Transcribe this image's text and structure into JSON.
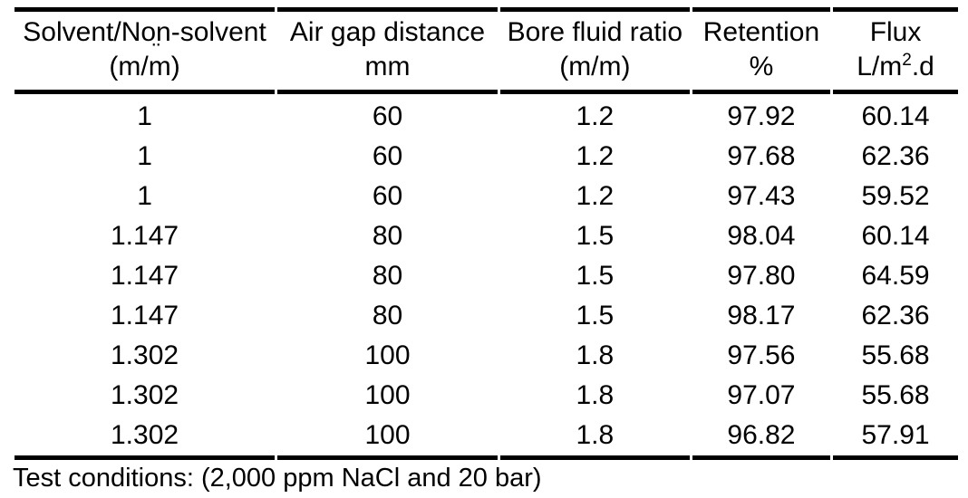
{
  "page": {
    "background_color": "#ffffff",
    "text_color": "#000000"
  },
  "table": {
    "headers": [
      {
        "line1": "Solvent/Non-solvent",
        "line2": "(m/m)",
        "artifact": "¨"
      },
      {
        "line1": "Air gap distance",
        "line2": "mm"
      },
      {
        "line1": "Bore fluid ratio",
        "line2": "(m/m)"
      },
      {
        "line1": "Retention",
        "line2": "%"
      },
      {
        "line1": "Flux",
        "unit_pre": "L/m",
        "unit_sup": "2",
        "unit_post": ".d"
      }
    ],
    "rows": [
      [
        "1",
        "60",
        "1.2",
        "97.92",
        "60.14"
      ],
      [
        "1",
        "60",
        "1.2",
        "97.68",
        "62.36"
      ],
      [
        "1",
        "60",
        "1.2",
        "97.43",
        "59.52"
      ],
      [
        "1.147",
        "80",
        "1.5",
        "98.04",
        "60.14"
      ],
      [
        "1.147",
        "80",
        "1.5",
        "97.80",
        "64.59"
      ],
      [
        "1.147",
        "80",
        "1.5",
        "98.17",
        "62.36"
      ],
      [
        "1.302",
        "100",
        "1.8",
        "97.56",
        "55.68"
      ],
      [
        "1.302",
        "100",
        "1.8",
        "97.07",
        "55.68"
      ],
      [
        "1.302",
        "100",
        "1.8",
        "96.82",
        "57.91"
      ]
    ],
    "footnote": "Test conditions: (2,000 ppm NaCl and 20 bar)"
  },
  "chart_data": {
    "type": "table",
    "columns": [
      "Solvent/Non-solvent (m/m)",
      "Air gap distance mm",
      "Bore fluid ratio (m/m)",
      "Retention %",
      "Flux L/m2.d"
    ],
    "rows": [
      [
        1,
        60,
        1.2,
        97.92,
        60.14
      ],
      [
        1,
        60,
        1.2,
        97.68,
        62.36
      ],
      [
        1,
        60,
        1.2,
        97.43,
        59.52
      ],
      [
        1.147,
        80,
        1.5,
        98.04,
        60.14
      ],
      [
        1.147,
        80,
        1.5,
        97.8,
        64.59
      ],
      [
        1.147,
        80,
        1.5,
        98.17,
        62.36
      ],
      [
        1.302,
        100,
        1.8,
        97.56,
        55.68
      ],
      [
        1.302,
        100,
        1.8,
        97.07,
        55.68
      ],
      [
        1.302,
        100,
        1.8,
        96.82,
        57.91
      ]
    ],
    "footnote": "Test conditions: (2,000 ppm NaCl and 20 bar)"
  }
}
